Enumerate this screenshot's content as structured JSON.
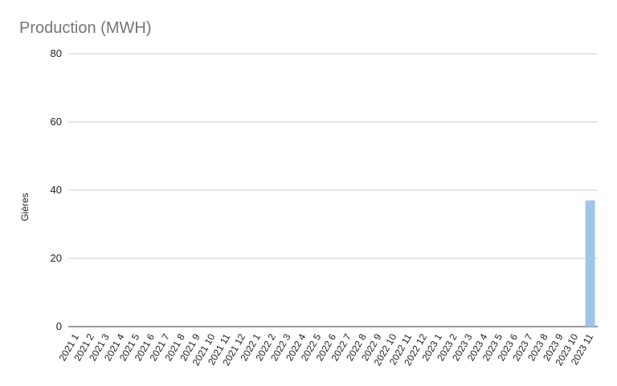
{
  "chart_data": {
    "type": "bar",
    "title": "Production (MWH)",
    "y_label": "Gières",
    "categories": [
      "2021 1",
      "2021 2",
      "2021 3",
      "2021 4",
      "2021 5",
      "2021 6",
      "2021 7",
      "2021 8",
      "2021 9",
      "2021 10",
      "2021 11",
      "2021 12",
      "2022 1",
      "2022 2",
      "2022 3",
      "2022 4",
      "2022 5",
      "2022 6",
      "2022 7",
      "2022 8",
      "2022 9",
      "2022 10",
      "2022 11",
      "2022 12",
      "2023 1",
      "2023 2",
      "2023 3",
      "2023 4",
      "2023 5",
      "2023 6",
      "2023 7",
      "2023 8",
      "2023 9",
      "2023 10",
      "2023 11"
    ],
    "values": [
      0,
      0,
      0,
      0,
      0,
      0,
      0,
      0,
      0,
      0,
      0,
      0,
      0,
      0,
      0,
      0,
      0,
      0,
      0,
      0,
      0,
      0,
      0,
      0,
      0,
      0,
      0,
      0,
      0,
      0,
      0,
      0,
      0,
      0,
      37
    ],
    "color": "#9fc5e8",
    "ylim": [
      0,
      80
    ],
    "yticks": [
      0,
      20,
      40,
      60,
      80
    ],
    "grid": true
  }
}
